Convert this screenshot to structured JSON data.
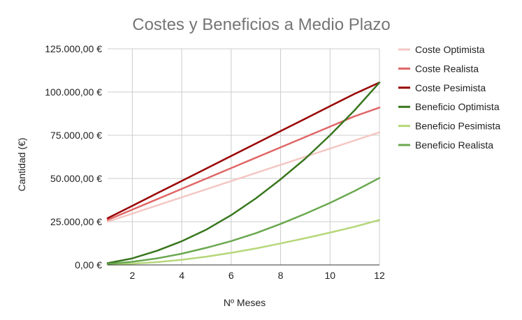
{
  "chart_data": {
    "type": "line",
    "title": "Costes y Beneficios a Medio Plazo",
    "xlabel": "Nº Meses",
    "ylabel": "Cantidad (€)",
    "xlim": [
      1,
      12
    ],
    "ylim": [
      0,
      125000
    ],
    "x_ticks": [
      2,
      4,
      6,
      8,
      10,
      12
    ],
    "x_tick_labels": [
      "2",
      "4",
      "6",
      "8",
      "10",
      "12"
    ],
    "y_ticks": [
      0,
      25000,
      50000,
      75000,
      100000,
      125000
    ],
    "y_tick_labels": [
      "0,00 €",
      "25.000,00 €",
      "50.000,00 €",
      "75.000,00 €",
      "100.000,00 €",
      "125.000,00 €"
    ],
    "grid": true,
    "legend_position": "right",
    "x": [
      1,
      2,
      3,
      4,
      5,
      6,
      7,
      8,
      9,
      10,
      11,
      12
    ],
    "series": [
      {
        "name": "Coste Optimista",
        "color": "#f4c7c3",
        "values": [
          25000,
          29700,
          34400,
          39100,
          43800,
          48500,
          53200,
          57900,
          62600,
          67300,
          72000,
          76700
        ]
      },
      {
        "name": "Coste Realista",
        "color": "#e06666",
        "values": [
          26000,
          32000,
          38000,
          44000,
          50000,
          56000,
          62000,
          68000,
          74000,
          80000,
          86000,
          91000
        ]
      },
      {
        "name": "Coste Pesimista",
        "color": "#990000",
        "values": [
          27000,
          34200,
          41400,
          48600,
          55800,
          63000,
          70200,
          77400,
          84600,
          91800,
          99000,
          105500
        ]
      },
      {
        "name": "Beneficio Optimista",
        "color": "#38761d",
        "values": [
          1000,
          3800,
          8200,
          13700,
          20500,
          28800,
          38500,
          49500,
          61500,
          75000,
          89500,
          105500
        ]
      },
      {
        "name": "Beneficio Pesimista",
        "color": "#b6d77a",
        "values": [
          200,
          700,
          1600,
          3000,
          4800,
          7000,
          9500,
          12400,
          15500,
          18700,
          22100,
          26000
        ]
      },
      {
        "name": "Beneficio Realista",
        "color": "#6aa84f",
        "values": [
          500,
          1800,
          3800,
          6500,
          9900,
          13800,
          18400,
          23700,
          29600,
          35900,
          42800,
          50300
        ]
      }
    ]
  }
}
